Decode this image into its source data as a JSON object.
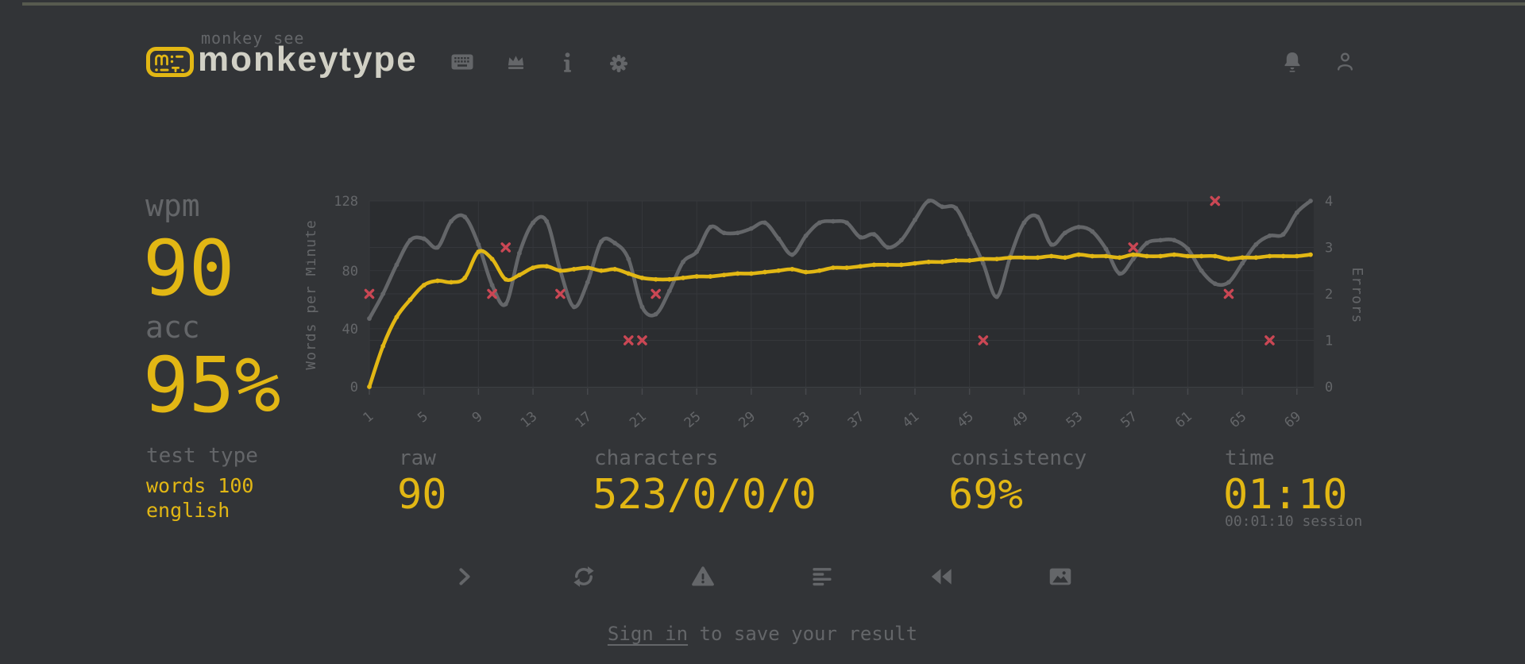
{
  "page": {
    "bg_color": "#323437",
    "accent_color": "#e2b714",
    "sub_color": "#646669",
    "text_color": "#d1d0c5",
    "error_color": "#ca4754"
  },
  "header": {
    "brand_top": "monkey see",
    "brand": "monkeytype",
    "nav_icons": [
      "keyboard-icon",
      "crown-icon",
      "info-icon",
      "settings-gear-icon"
    ],
    "right_icons": [
      "notification-bell-icon",
      "user-profile-icon"
    ]
  },
  "stats": {
    "wpm_label": "wpm",
    "wpm_value": "90",
    "acc_label": "acc",
    "acc_value": "95%",
    "test_type_label": "test type",
    "test_type_line1": "words 100",
    "test_type_line2": "english"
  },
  "chart_data": {
    "type": "line",
    "x": [
      1,
      2,
      3,
      4,
      5,
      6,
      7,
      8,
      9,
      10,
      11,
      12,
      13,
      14,
      15,
      16,
      17,
      18,
      19,
      20,
      21,
      22,
      23,
      24,
      25,
      26,
      27,
      28,
      29,
      30,
      31,
      32,
      33,
      34,
      35,
      36,
      37,
      38,
      39,
      40,
      41,
      42,
      43,
      44,
      45,
      46,
      47,
      48,
      49,
      50,
      51,
      52,
      53,
      54,
      55,
      56,
      57,
      58,
      59,
      60,
      61,
      62,
      63,
      64,
      65,
      66,
      67,
      68,
      69,
      70
    ],
    "series": [
      {
        "name": "raw",
        "axis": "left",
        "color": "#646669",
        "values": [
          47,
          64,
          84,
          101,
          102,
          96,
          114,
          117,
          98,
          70,
          57,
          92,
          113,
          114,
          80,
          55,
          72,
          100,
          99,
          88,
          55,
          50,
          66,
          86,
          93,
          110,
          106,
          106,
          109,
          113,
          102,
          91,
          104,
          113,
          114,
          113,
          103,
          105,
          96,
          101,
          115,
          128,
          124,
          123,
          105,
          85,
          62,
          90,
          113,
          117,
          98,
          106,
          110,
          107,
          95,
          78,
          88,
          99,
          101,
          101,
          95,
          80,
          71,
          72,
          85,
          98,
          104,
          105,
          120,
          128
        ]
      },
      {
        "name": "wpm",
        "axis": "left",
        "color": "#e2b714",
        "values": [
          0,
          28,
          48,
          60,
          70,
          73,
          72,
          75,
          93,
          88,
          74,
          77,
          82,
          83,
          80,
          81,
          82,
          80,
          81,
          78,
          75,
          74,
          74,
          75,
          76,
          76,
          77,
          78,
          78,
          79,
          80,
          81,
          79,
          80,
          82,
          82,
          83,
          84,
          84,
          84,
          85,
          86,
          86,
          87,
          87,
          88,
          88,
          89,
          89,
          89,
          90,
          89,
          91,
          90,
          90,
          89,
          91,
          90,
          90,
          91,
          90,
          90,
          90,
          88,
          89,
          89,
          90,
          90,
          90,
          91
        ]
      },
      {
        "name": "errors",
        "axis": "right",
        "color": "#ca4754",
        "style": "scatter-x",
        "points": [
          [
            1,
            2
          ],
          [
            10,
            2
          ],
          [
            11,
            3
          ],
          [
            15,
            2
          ],
          [
            20,
            1
          ],
          [
            21,
            1
          ],
          [
            22,
            2
          ],
          [
            46,
            1
          ],
          [
            57,
            3
          ],
          [
            63,
            4
          ],
          [
            64,
            2
          ],
          [
            67,
            1
          ]
        ]
      }
    ],
    "left_axis": {
      "label": "Words per Minute",
      "min": 0,
      "max": 128,
      "ticks": [
        0,
        40,
        80,
        128
      ]
    },
    "right_axis": {
      "label": "Errors",
      "min": 0,
      "max": 4,
      "ticks": [
        0,
        1,
        2,
        3,
        4
      ]
    },
    "x_ticks": [
      1,
      5,
      9,
      13,
      17,
      21,
      25,
      29,
      33,
      37,
      41,
      45,
      49,
      53,
      57,
      61,
      65,
      69
    ],
    "grid": true,
    "legend": "none"
  },
  "bottom_stats": {
    "raw_label": "raw",
    "raw_value": "90",
    "characters_label": "characters",
    "characters_value": "523/0/0/0",
    "consistency_label": "consistency",
    "consistency_value": "69%",
    "time_label": "time",
    "time_value": "01:10",
    "time_session": "00:01:10 session"
  },
  "actions": [
    "next-test",
    "repeat-test",
    "report-quote",
    "toggle-words-history",
    "watch-replay",
    "copy-to-image"
  ],
  "signin": {
    "link_label": "Sign in",
    "suffix": " to save your result"
  }
}
